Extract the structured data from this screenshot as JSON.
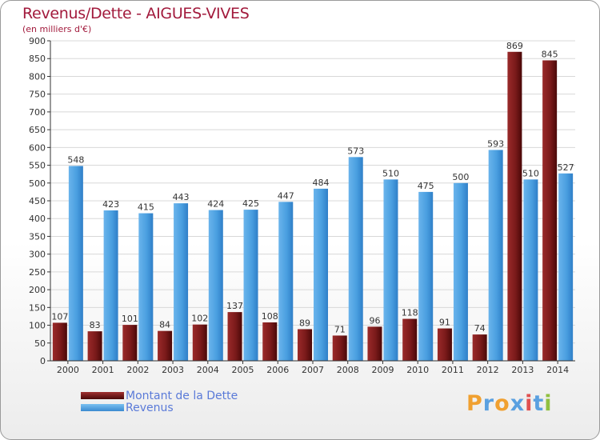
{
  "title": "Revenus/Dette - AIGUES-VIVES",
  "subtitle": "(en milliers d'€)",
  "logo": {
    "text": "Proxiti",
    "colors": [
      "#f0a030",
      "#5aa0e0",
      "#f0a030",
      "#5aa0e0",
      "#e05050",
      "#5aa0e0",
      "#90c040"
    ]
  },
  "colors": {
    "dette": "#7a1a1a",
    "revenus": "#4a9fe0",
    "grid": "#d8d8d8",
    "axis": "#333333"
  },
  "chart_data": {
    "type": "bar",
    "title": "Revenus/Dette - AIGUES-VIVES",
    "subtitle": "(en milliers d'€)",
    "xlabel": "",
    "ylabel": "",
    "ylim": [
      0,
      900
    ],
    "yticks": [
      0,
      50,
      100,
      150,
      200,
      250,
      300,
      350,
      400,
      450,
      500,
      550,
      600,
      650,
      700,
      750,
      800,
      850,
      900
    ],
    "grid": true,
    "legend_position": "bottom-left",
    "categories": [
      "2000",
      "2001",
      "2002",
      "2003",
      "2004",
      "2005",
      "2006",
      "2007",
      "2008",
      "2009",
      "2010",
      "2011",
      "2012",
      "2013",
      "2014"
    ],
    "series": [
      {
        "name": "Montant de la Dette",
        "values": [
          107,
          83,
          101,
          84,
          102,
          137,
          108,
          89,
          71,
          96,
          118,
          91,
          74,
          869,
          845
        ]
      },
      {
        "name": "Revenus",
        "values": [
          548,
          423,
          415,
          443,
          424,
          425,
          447,
          484,
          573,
          510,
          475,
          500,
          593,
          510,
          527
        ]
      }
    ]
  }
}
